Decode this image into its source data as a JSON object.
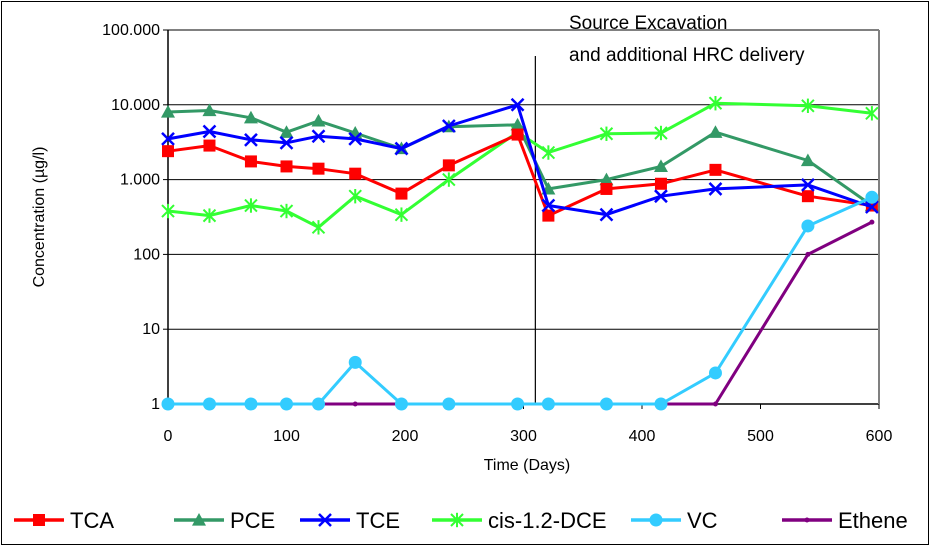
{
  "chart_data": {
    "type": "line",
    "title": "",
    "xlabel": "Time (Days)",
    "ylabel": "Concentration (µg/l)",
    "x_scale": "linear",
    "y_scale": "log",
    "xlim": [
      0,
      600
    ],
    "ylim": [
      1,
      100000
    ],
    "x_ticks": [
      0,
      100,
      200,
      300,
      400,
      500,
      600
    ],
    "x_tick_labels": [
      "0",
      "100",
      "200",
      "300",
      "400",
      "500",
      "600"
    ],
    "y_ticks": [
      1,
      10,
      100,
      1000,
      10000,
      100000
    ],
    "y_tick_labels": [
      "1",
      "10",
      "100",
      "1.000",
      "10.000",
      "100.000"
    ],
    "grid": "horizontal",
    "legend_position": "bottom",
    "annotation": {
      "lines": [
        "Source Excavation",
        "and additional HRC delivery"
      ],
      "x": 310
    },
    "series": [
      {
        "name": "TCA",
        "color": "#ff0000",
        "marker": "square",
        "x": [
          0,
          35,
          70,
          100,
          127,
          158,
          197,
          237,
          295,
          321,
          370,
          416,
          462,
          540,
          594
        ],
        "y": [
          2400,
          2850,
          1750,
          1500,
          1400,
          1200,
          650,
          1550,
          4000,
          330,
          750,
          880,
          1350,
          600,
          450
        ]
      },
      {
        "name": "PCE",
        "color": "#339966",
        "marker": "triangle",
        "x": [
          0,
          35,
          70,
          100,
          127,
          158,
          197,
          237,
          295,
          321,
          370,
          416,
          462,
          540,
          594
        ],
        "y": [
          8000,
          8400,
          6700,
          4300,
          6100,
          4200,
          2600,
          5100,
          5400,
          750,
          1000,
          1500,
          4300,
          1800,
          450
        ]
      },
      {
        "name": "TCE",
        "color": "#0000ff",
        "marker": "x",
        "x": [
          0,
          35,
          70,
          100,
          127,
          158,
          197,
          237,
          295,
          321,
          370,
          416,
          462,
          540,
          594
        ],
        "y": [
          3500,
          4400,
          3400,
          3100,
          3800,
          3500,
          2600,
          5200,
          10000,
          450,
          340,
          600,
          750,
          850,
          430
        ]
      },
      {
        "name": "cis-1.2-DCE",
        "color": "#33ff33",
        "marker": "star",
        "x": [
          0,
          35,
          70,
          100,
          127,
          158,
          197,
          237,
          295,
          321,
          370,
          416,
          462,
          540,
          594
        ],
        "y": [
          380,
          330,
          450,
          380,
          230,
          600,
          340,
          1000,
          4300,
          2300,
          4100,
          4200,
          10500,
          9700,
          7700
        ]
      },
      {
        "name": "VC",
        "color": "#33ccff",
        "marker": "circle",
        "x": [
          0,
          35,
          70,
          100,
          127,
          158,
          197,
          237,
          295,
          321,
          370,
          416,
          462,
          540,
          594
        ],
        "y": [
          1,
          1,
          1,
          1,
          1,
          3.6,
          1,
          1,
          1,
          1,
          1,
          1,
          2.6,
          240,
          580
        ]
      },
      {
        "name": "Ethene",
        "color": "#800080",
        "marker": "dot",
        "x": [
          0,
          35,
          70,
          100,
          127,
          158,
          197,
          237,
          295,
          321,
          370,
          416,
          462,
          540,
          594
        ],
        "y": [
          1,
          1,
          1,
          1,
          1,
          1,
          1,
          1,
          1,
          1,
          1,
          1,
          1,
          100,
          270
        ]
      }
    ]
  }
}
